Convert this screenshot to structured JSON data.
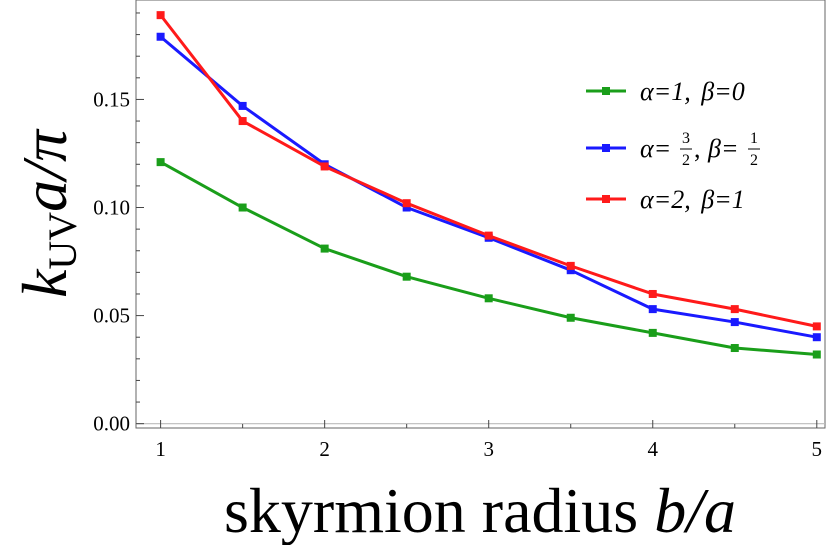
{
  "chart_data": {
    "type": "line",
    "xlabel": "skyrmion radius b/a",
    "ylabel": "k_UV a/π",
    "xlim": [
      0.85,
      5.05
    ],
    "ylim": [
      -0.002,
      0.196
    ],
    "x_ticks": [
      "1",
      "2",
      "3",
      "4",
      "5"
    ],
    "y_ticks": [
      "0.00",
      "0.05",
      "0.10",
      "0.15"
    ],
    "grid": false,
    "legend_position": "top-right",
    "x": [
      1,
      1.5,
      2,
      2.5,
      3,
      3.5,
      4,
      4.5,
      5
    ],
    "series": [
      {
        "name": "α=1, β=0",
        "color": "#1a9e1a",
        "values": [
          0.121,
          0.1,
          0.081,
          0.068,
          0.058,
          0.049,
          0.042,
          0.035,
          0.032
        ]
      },
      {
        "name": "α=3/2, β=1/2",
        "color": "#1a1aff",
        "values": [
          0.179,
          0.147,
          0.12,
          0.1,
          0.086,
          0.071,
          0.053,
          0.047,
          0.04
        ]
      },
      {
        "name": "α=2, β=1",
        "color": "#ff1a1a",
        "values": [
          0.189,
          0.14,
          0.119,
          0.102,
          0.087,
          0.073,
          0.06,
          0.053,
          0.045
        ]
      }
    ]
  },
  "legend": {
    "items": [
      {
        "alpha": "α=1,",
        "beta": "β=0"
      },
      {
        "alpha_prefix": "α=",
        "alpha_num": "3",
        "alpha_den": "2",
        "comma": ",",
        "beta_prefix": "β=",
        "beta_num": "1",
        "beta_den": "2"
      },
      {
        "alpha": "α=2,",
        "beta": "β=1"
      }
    ]
  },
  "axis_titles": {
    "y_main": "k",
    "y_sub": "UV",
    "y_rest": "a/π",
    "x_main": "skyrmion radius ",
    "x_italic": "b/a"
  }
}
